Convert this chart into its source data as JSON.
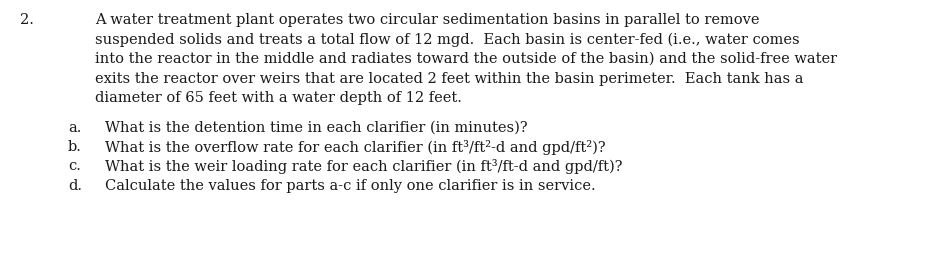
{
  "background_color": "#ffffff",
  "number": "2.",
  "paragraph_lines": [
    "A water treatment plant operates two circular sedimentation basins in parallel to remove",
    "suspended solids and treats a total flow of 12 mgd.  Each basin is center-fed (i.e., water comes",
    "into the reactor in the middle and radiates toward the outside of the basin) and the solid-free water",
    "exits the reactor over weirs that are located 2 feet within the basin perimeter.  Each tank has a",
    "diameter of 65 feet with a water depth of 12 feet."
  ],
  "items": [
    {
      "label": "a.",
      "text": "What is the detention time in each clarifier (in minutes)?"
    },
    {
      "label": "b.",
      "text": "What is the overflow rate for each clarifier (in ft³/ft²-d and gpd/ft²)?"
    },
    {
      "label": "c.",
      "text": "What is the weir loading rate for each clarifier (in ft³/ft-d and gpd/ft)?"
    },
    {
      "label": "d.",
      "text": "Calculate the values for parts a-c if only one clarifier is in service."
    }
  ],
  "font_size": 10.5,
  "font_family": "DejaVu Serif",
  "text_color": "#1a1a1a",
  "fig_width": 9.5,
  "fig_height": 2.65,
  "dpi": 100
}
